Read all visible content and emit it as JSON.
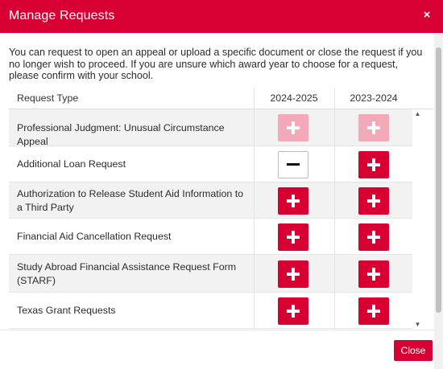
{
  "dialog": {
    "title": "Manage Requests",
    "close_icon": "×",
    "intro": "You can request to open an appeal or upload a specific document or close the request if you no longer wish to proceed. If you are unsure which award year to choose for a request, please confirm with your school.",
    "close_label": "Close"
  },
  "table": {
    "headers": [
      "Request Type",
      "2024-2025",
      "2023-2024"
    ],
    "rows": [
      {
        "label": "Professional Judgment: Unusual Circumstance Appeal",
        "y1": "add-disabled",
        "y2": "add-disabled"
      },
      {
        "label": "Additional Loan Request",
        "y1": "remove",
        "y2": "add"
      },
      {
        "label": "Authorization to Release Student Aid Information to a Third Party",
        "y1": "add",
        "y2": "add"
      },
      {
        "label": "Financial Aid Cancellation Request",
        "y1": "add",
        "y2": "add"
      },
      {
        "label": "Study Abroad Financial Assistance Request Form (STARF)",
        "y1": "add",
        "y2": "add"
      },
      {
        "label": "Texas Grant Requests",
        "y1": "add",
        "y2": "add"
      }
    ]
  },
  "icons": {
    "add": "plus-icon",
    "remove": "minus-icon",
    "scroll_up": "▲",
    "scroll_down": "▼"
  },
  "colors": {
    "brand": "#d80032",
    "disabled": "#f3a9b8",
    "row_alt": "#f2f2f2"
  }
}
